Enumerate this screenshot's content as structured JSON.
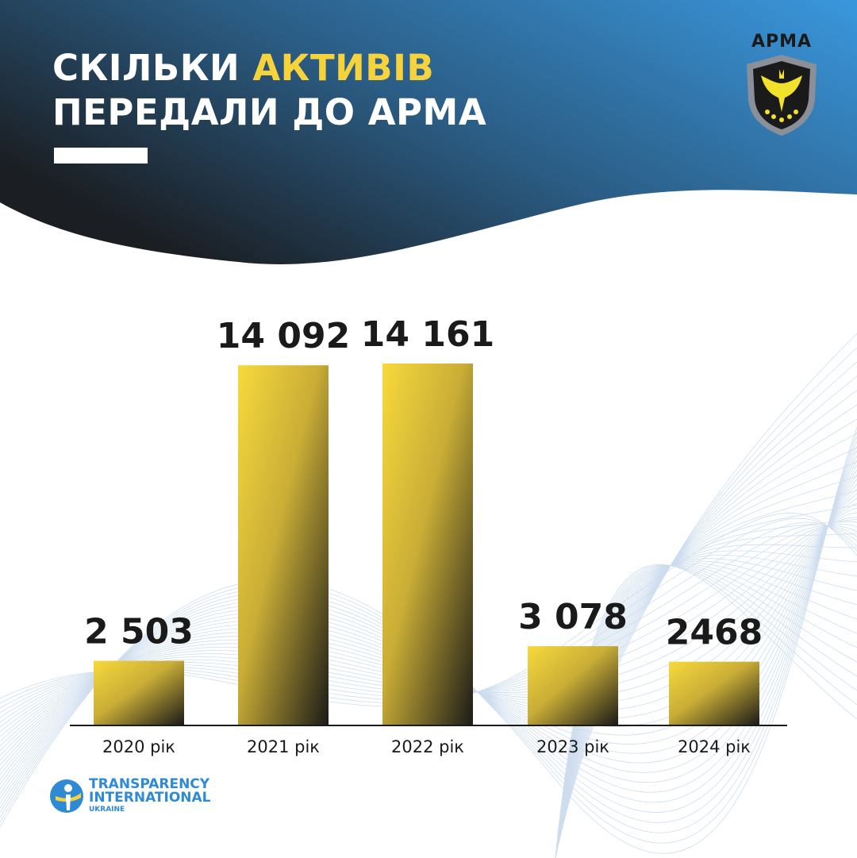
{
  "title": {
    "line1_prefix": "СКІЛЬКИ ",
    "line1_highlight": "АКТИВІВ",
    "line2": "ПЕРЕДАЛИ ДО АРМА"
  },
  "colors": {
    "header_dark": "#1b1f24",
    "header_light": "#3a97dd",
    "highlight": "#f6d33c",
    "bar_top": "#f7d93c",
    "bar_bottom": "#1c1b18",
    "ti_blue": "#2f8ad6"
  },
  "arma_logo": {
    "text": "АРМА"
  },
  "ti_logo": {
    "line1": "TRANSPARENCY",
    "line2": "INTERNATIONAL",
    "line3": "UKRAINE"
  },
  "chart_data": {
    "type": "bar",
    "categories": [
      "2020 рік",
      "2021 рік",
      "2022 рік",
      "2023 рік",
      "2024 рік"
    ],
    "values": [
      2503,
      14092,
      14161,
      3078,
      2468
    ],
    "value_labels": [
      "2 503",
      "14 092",
      "14 161",
      "3 078",
      "2468"
    ],
    "title": "",
    "xlabel": "",
    "ylabel": "",
    "ylim": [
      0,
      14161
    ],
    "grid": false
  }
}
